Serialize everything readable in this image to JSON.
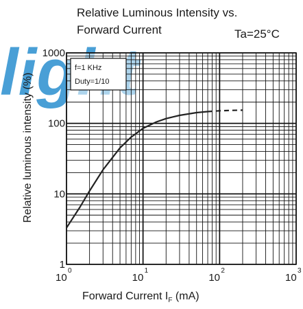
{
  "chart_data": {
    "type": "line",
    "title_lines": [
      "Relative Luminous Intensity vs.",
      "Forward Current"
    ],
    "condition": "Ta=25°C",
    "xlabel_main": "Forward Current  I",
    "xlabel_sub": "F",
    "xlabel_unit": " (mA)",
    "ylabel": "Relative luminous intensity (%)",
    "x_scale": "log",
    "y_scale": "log",
    "xlim": [
      1,
      1000
    ],
    "ylim": [
      1,
      1000
    ],
    "grid": true,
    "x_ticks": [
      {
        "value": 1,
        "base": "10",
        "exp": "0"
      },
      {
        "value": 10,
        "base": "10",
        "exp": "1"
      },
      {
        "value": 100,
        "base": "10",
        "exp": "2"
      },
      {
        "value": 1000,
        "base": "10",
        "exp": "3"
      }
    ],
    "y_ticks": [
      {
        "value": 1,
        "label": "1"
      },
      {
        "value": 10,
        "label": "10"
      },
      {
        "value": 100,
        "label": "100"
      },
      {
        "value": 1000,
        "label": "1000"
      }
    ],
    "legend_lines": [
      "f=1 KHz",
      "Duty=1/10"
    ],
    "legend_placement": "top-left",
    "series": [
      {
        "style": "solid",
        "x": [
          1,
          1.5,
          2,
          3,
          5,
          7,
          10,
          15,
          20,
          30,
          50,
          70
        ],
        "y": [
          3.3,
          6.5,
          11,
          22,
          45,
          64,
          85,
          105,
          117,
          130,
          142,
          147
        ]
      },
      {
        "style": "dashed",
        "x": [
          70,
          100,
          150,
          200
        ],
        "y": [
          147,
          151,
          153,
          154
        ]
      }
    ],
    "colors": {
      "curve": "#222222",
      "grid": "#111111",
      "watermark": "#2a8fd0"
    }
  }
}
